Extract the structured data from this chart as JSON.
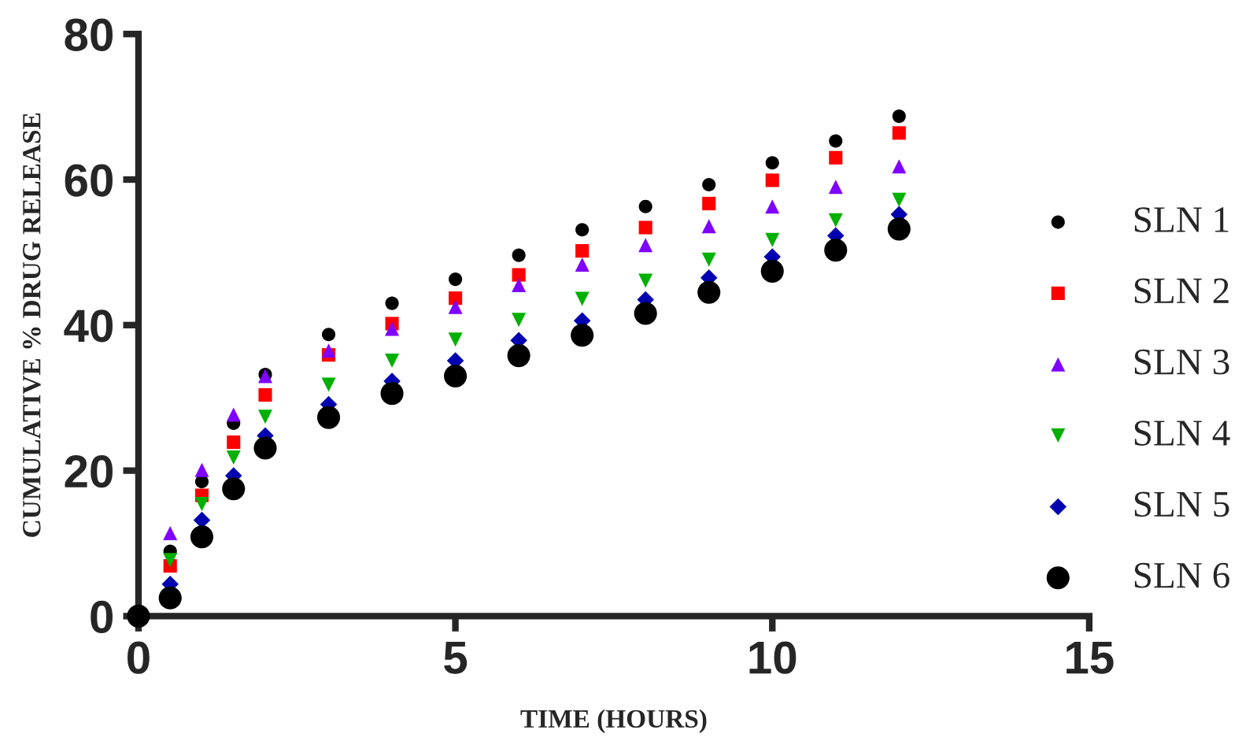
{
  "chart_data": {
    "type": "scatter",
    "xlabel": "TIME (HOURS)",
    "ylabel": "CUMULATIVE % DRUG RELEASE",
    "x": [
      0,
      0.5,
      1,
      1.5,
      2,
      3,
      4,
      5,
      6,
      7,
      8,
      9,
      10,
      11,
      12
    ],
    "xlim": [
      0,
      15
    ],
    "xticks": [
      0,
      5,
      10,
      15
    ],
    "ylim": [
      0,
      80
    ],
    "yticks": [
      0,
      20,
      40,
      60,
      80
    ],
    "grid": false,
    "legend": "right",
    "series": [
      {
        "name": "SLN 1",
        "color": "#000000",
        "marker": "circle",
        "x": [
          0.5,
          1,
          1.5,
          2,
          3,
          4,
          5,
          6,
          7,
          8,
          9,
          10,
          11,
          12
        ],
        "values": [
          8.9,
          18.5,
          26.5,
          33.2,
          38.7,
          43.0,
          46.3,
          49.6,
          53.1,
          56.3,
          59.3,
          62.3,
          65.3,
          68.7
        ]
      },
      {
        "name": "SLN 2",
        "color": "#ff0000",
        "marker": "square",
        "x": [
          0.5,
          1,
          1.5,
          2,
          3,
          4,
          5,
          6,
          7,
          8,
          9,
          10,
          11,
          12
        ],
        "values": [
          6.9,
          16.6,
          23.9,
          30.4,
          35.9,
          40.2,
          43.7,
          46.9,
          50.2,
          53.4,
          56.7,
          59.9,
          63.0,
          66.4
        ]
      },
      {
        "name": "SLN 3",
        "color": "#7f00ff",
        "marker": "triangle",
        "x": [
          0.5,
          1,
          1.5,
          2,
          3,
          4,
          5,
          6,
          7,
          8,
          9,
          10,
          11,
          12
        ],
        "values": [
          11.4,
          20.1,
          27.7,
          33.0,
          36.5,
          39.5,
          42.5,
          45.5,
          48.3,
          51.0,
          53.6,
          56.3,
          59.0,
          61.8
        ]
      },
      {
        "name": "SLN 4",
        "color": "#00b000",
        "marker": "triangle_down",
        "x": [
          0.5,
          1,
          1.5,
          2,
          3,
          4,
          5,
          6,
          7,
          8,
          9,
          10,
          11,
          12
        ],
        "values": [
          7.7,
          15.4,
          21.8,
          27.4,
          31.8,
          35.1,
          38.0,
          40.7,
          43.6,
          46.1,
          49.0,
          51.7,
          54.4,
          57.2
        ]
      },
      {
        "name": "SLN 5",
        "color": "#0000b0",
        "marker": "diamond",
        "x": [
          0.5,
          1,
          1.5,
          2,
          3,
          4,
          5,
          6,
          7,
          8,
          9,
          10,
          11,
          12
        ],
        "values": [
          4.4,
          13.2,
          19.3,
          24.8,
          29.1,
          32.3,
          35.1,
          37.9,
          40.6,
          43.5,
          46.5,
          49.4,
          52.3,
          55.2
        ]
      },
      {
        "name": "SLN 6",
        "color": "#000000",
        "marker": "circle",
        "values": [
          0,
          2.5,
          10.9,
          17.5,
          23.1,
          27.3,
          30.6,
          33.0,
          35.8,
          38.6,
          41.6,
          44.5,
          47.4,
          50.3,
          53.2
        ]
      }
    ]
  }
}
